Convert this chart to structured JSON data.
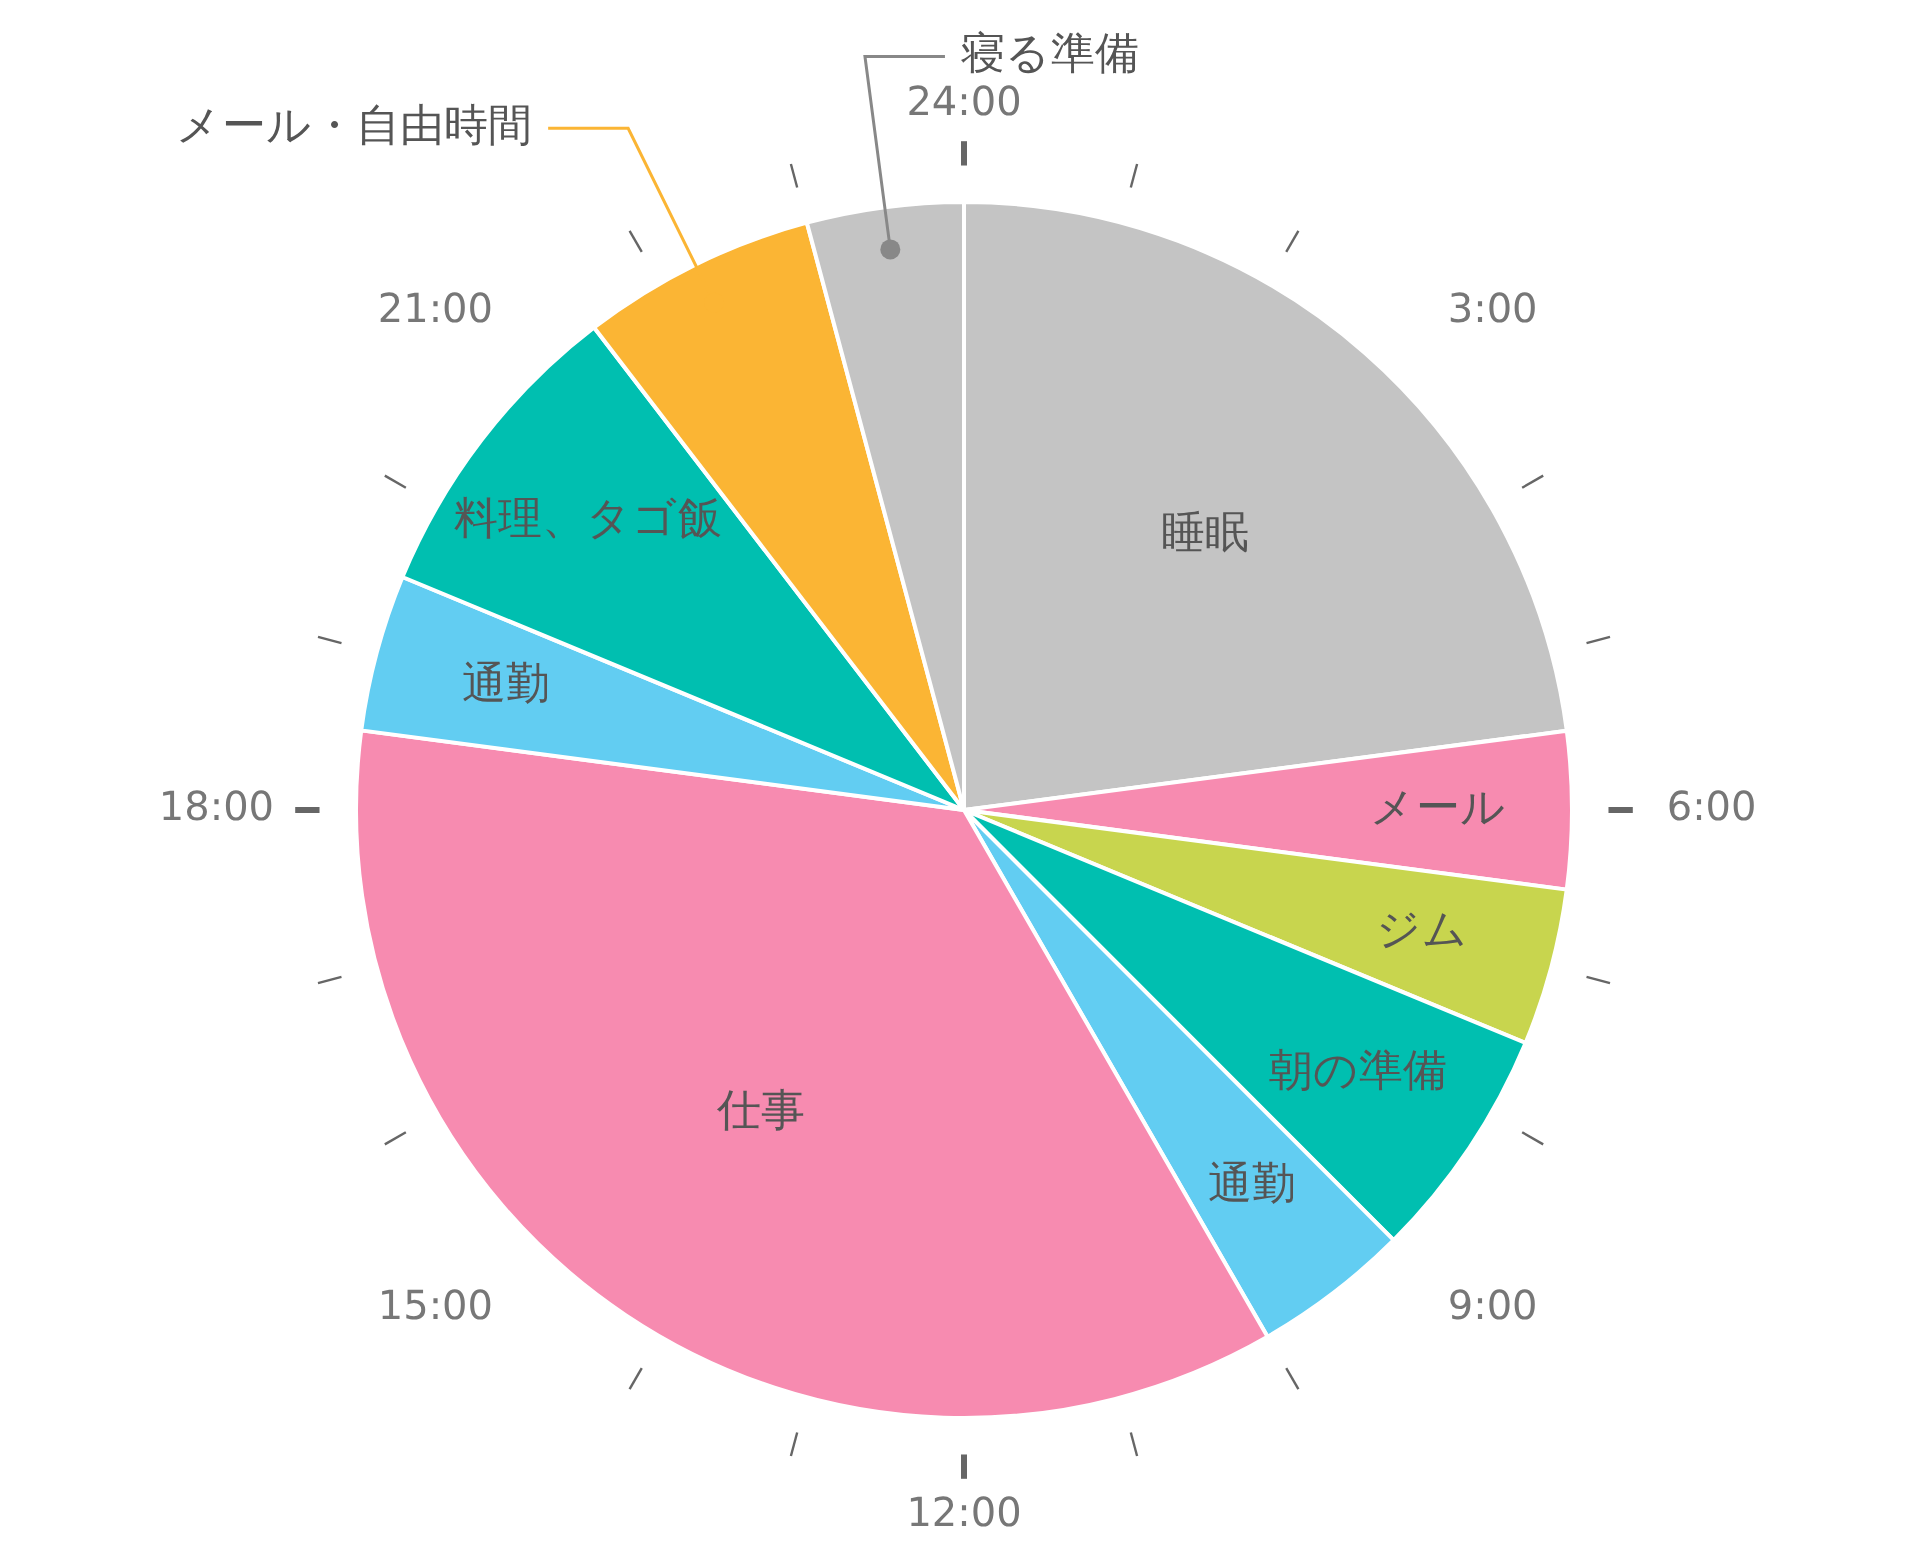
{
  "chart_data": {
    "type": "pie",
    "categories": [
      "睡眠",
      "メール",
      "ジム",
      "朝の準備",
      "通勤",
      "仕事",
      "通勤",
      "料理、タゴ飯",
      "メール・自由時間",
      "寝る準備"
    ],
    "values": [
      22.92,
      4.17,
      4.17,
      6.25,
      4.17,
      35.41,
      4.17,
      8.33,
      6.25,
      4.16
    ],
    "colors": [
      "#c4c4c4",
      "#f78bb0",
      "#c8d54e",
      "#00bfb0",
      "#62cdf2",
      "#f78bb0",
      "#62cdf2",
      "#00bfb0",
      "#fbb534",
      "#c4c4c4"
    ],
    "annotations": [
      "24:00",
      "3:00",
      "6:00",
      "9:00",
      "12:00",
      "15:00",
      "18:00",
      "21:00"
    ],
    "legend": false
  }
}
